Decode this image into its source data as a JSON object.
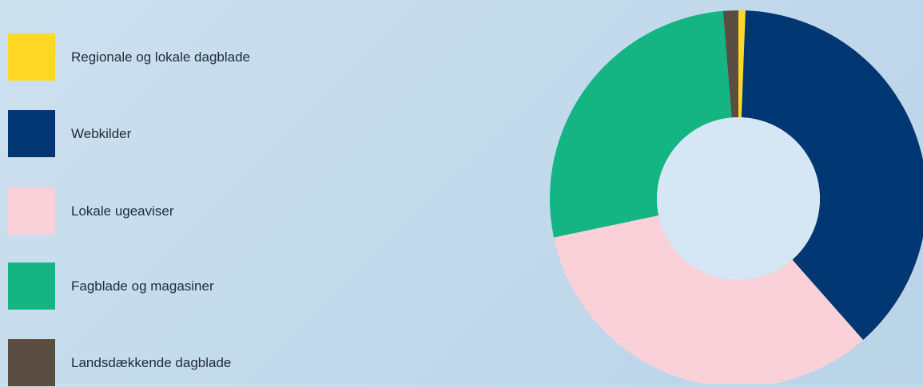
{
  "chart_data": {
    "type": "pie",
    "variant": "donut",
    "title": "",
    "legend_position": "left",
    "series": [
      {
        "name": "Regionale og lokale dagblade",
        "value": 0.6,
        "color": "#ffd826"
      },
      {
        "name": "Webkilder",
        "value": 37.9,
        "color": "#003671"
      },
      {
        "name": "Lokale ugeaviser",
        "value": 33.2,
        "color": "#fad1d9"
      },
      {
        "name": "Fagblade og magasiner",
        "value": 27.0,
        "color": "#14b483"
      },
      {
        "name": "Landsdækkende dagblade",
        "value": 1.3,
        "color": "#5a4e42"
      }
    ],
    "slice_order": [
      "Regionale og lokale dagblade",
      "Webkilder",
      "Lokale ugeaviser",
      "Fagblade og magasiner",
      "Landsdækkende dagblade"
    ],
    "start_angle": "12 o'clock",
    "direction": "clockwise"
  }
}
